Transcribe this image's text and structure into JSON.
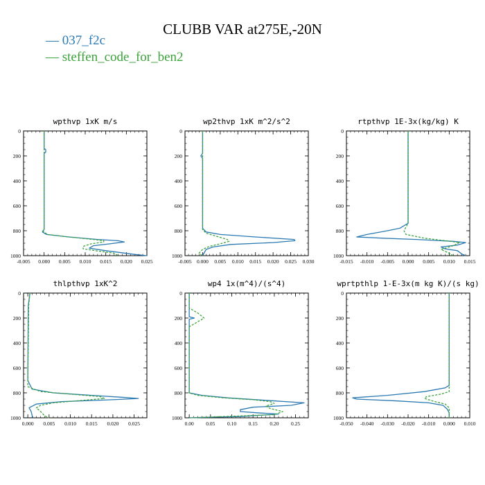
{
  "title": "CLUBB VAR at275E,-20N",
  "legend": [
    {
      "name": "037_f2c",
      "color": "#2a79b2"
    },
    {
      "name": "steffen_code_for_ben2",
      "color": "#3aa33a"
    }
  ],
  "chart_data": [
    {
      "type": "line",
      "title": "wpthvp  1xK m/s",
      "xlim": [
        -0.005,
        0.025
      ],
      "ylim": [
        0,
        1000
      ],
      "y_inverted": true,
      "xticks": [
        -0.005,
        0.0,
        0.005,
        0.01,
        0.015,
        0.02,
        0.025
      ],
      "xtick_labels": [
        "-0.005",
        "0.000",
        "0.005",
        "0.010",
        "0.015",
        "0.020",
        "0.025"
      ],
      "yticks": [
        0,
        200,
        400,
        600,
        800,
        1000
      ],
      "ytick_labels": [
        "0",
        "200",
        "400",
        "600",
        "800",
        "1000"
      ],
      "series": [
        {
          "name": "037_f2c",
          "dash": "solid",
          "points": [
            [
              0.0,
              0
            ],
            [
              0.0,
              140
            ],
            [
              0.0004,
              150
            ],
            [
              0.0004,
              170
            ],
            [
              0.0,
              180
            ],
            [
              0.0,
              790
            ],
            [
              -0.0004,
              810
            ],
            [
              0.0006,
              830
            ],
            [
              0.006,
              850
            ],
            [
              0.013,
              870
            ],
            [
              0.018,
              880
            ],
            [
              0.0195,
              890
            ],
            [
              0.016,
              905
            ],
            [
              0.012,
              920
            ],
            [
              0.011,
              940
            ],
            [
              0.015,
              960
            ],
            [
              0.022,
              990
            ],
            [
              0.025,
              1000
            ]
          ]
        },
        {
          "name": "steffen_code_for_ben2",
          "dash": "dashed",
          "points": [
            [
              0.0,
              0
            ],
            [
              0.0,
              790
            ],
            [
              -0.0004,
              800
            ],
            [
              0.0008,
              830
            ],
            [
              0.006,
              850
            ],
            [
              0.012,
              870
            ],
            [
              0.0145,
              880
            ],
            [
              0.0145,
              890
            ],
            [
              0.0115,
              905
            ],
            [
              0.0095,
              925
            ],
            [
              0.0095,
              945
            ],
            [
              0.0125,
              960
            ],
            [
              0.017,
              980
            ],
            [
              0.018,
              1000
            ]
          ]
        }
      ]
    },
    {
      "type": "line",
      "title": "wp2thvp  1xK m^2/s^2",
      "xlim": [
        -0.005,
        0.03
      ],
      "ylim": [
        0,
        1000
      ],
      "y_inverted": true,
      "xticks": [
        -0.005,
        0.0,
        0.005,
        0.01,
        0.015,
        0.02,
        0.025,
        0.03
      ],
      "xtick_labels": [
        "-0.005",
        "0.000",
        "0.005",
        "0.010",
        "0.015",
        "0.020",
        "0.025",
        "0.030"
      ],
      "yticks": [
        0,
        200,
        400,
        600,
        800,
        1000
      ],
      "ytick_labels": [
        "0",
        "200",
        "400",
        "600",
        "800",
        "1000"
      ],
      "series": [
        {
          "name": "037_f2c",
          "dash": "solid",
          "points": [
            [
              0.0,
              0
            ],
            [
              0.0,
              180
            ],
            [
              -0.0005,
              200
            ],
            [
              0.0,
              220
            ],
            [
              0.0,
              780
            ],
            [
              0.001,
              810
            ],
            [
              0.005,
              830
            ],
            [
              0.015,
              850
            ],
            [
              0.026,
              870
            ],
            [
              0.0262,
              880
            ],
            [
              0.02,
              895
            ],
            [
              0.008,
              910
            ],
            [
              0.003,
              930
            ],
            [
              0.001,
              950
            ],
            [
              0.0,
              1000
            ]
          ]
        },
        {
          "name": "steffen_code_for_ben2",
          "dash": "dashed",
          "points": [
            [
              0.0,
              0
            ],
            [
              0.0,
              790
            ],
            [
              0.001,
              820
            ],
            [
              0.004,
              845
            ],
            [
              0.007,
              870
            ],
            [
              0.0075,
              885
            ],
            [
              0.005,
              905
            ],
            [
              0.002,
              925
            ],
            [
              0.0,
              950
            ],
            [
              -0.001,
              980
            ],
            [
              0.0,
              1000
            ]
          ]
        }
      ]
    },
    {
      "type": "line",
      "title": "rtpthvp  1E-3x(kg/kg) K",
      "xlim": [
        -0.015,
        0.015
      ],
      "ylim": [
        0,
        1000
      ],
      "y_inverted": true,
      "xticks": [
        -0.015,
        -0.01,
        -0.005,
        0.0,
        0.005,
        0.01,
        0.015
      ],
      "xtick_labels": [
        "-0.015",
        "-0.010",
        "-0.005",
        "0.000",
        "0.005",
        "0.010",
        "0.015"
      ],
      "yticks": [
        0,
        200,
        400,
        600,
        800,
        1000
      ],
      "ytick_labels": [
        "0",
        "200",
        "400",
        "600",
        "800",
        "1000"
      ],
      "series": [
        {
          "name": "037_f2c",
          "dash": "solid",
          "points": [
            [
              0.0,
              0
            ],
            [
              0.0,
              740
            ],
            [
              -0.002,
              780
            ],
            [
              -0.005,
              800
            ],
            [
              -0.01,
              830
            ],
            [
              -0.0125,
              850
            ],
            [
              -0.006,
              860
            ],
            [
              0.002,
              870
            ],
            [
              0.011,
              885
            ],
            [
              0.014,
              895
            ],
            [
              0.012,
              915
            ],
            [
              0.008,
              930
            ],
            [
              0.009,
              945
            ],
            [
              0.012,
              960
            ],
            [
              0.013,
              985
            ],
            [
              0.014,
              1000
            ]
          ]
        },
        {
          "name": "steffen_code_for_ben2",
          "dash": "dashed",
          "points": [
            [
              0.0,
              0
            ],
            [
              0.0,
              740
            ],
            [
              -0.0005,
              770
            ],
            [
              -0.001,
              800
            ],
            [
              -0.0005,
              830
            ],
            [
              0.004,
              860
            ],
            [
              0.009,
              880
            ],
            [
              0.0125,
              895
            ],
            [
              0.011,
              920
            ],
            [
              0.008,
              950
            ],
            [
              0.01,
              980
            ],
            [
              0.011,
              1000
            ]
          ]
        }
      ]
    },
    {
      "type": "line",
      "title": "thlpthvp  1xK^2",
      "xlim": [
        -0.001,
        0.028
      ],
      "ylim": [
        0,
        1000
      ],
      "y_inverted": true,
      "xticks": [
        0.0,
        0.005,
        0.01,
        0.015,
        0.02,
        0.025
      ],
      "xtick_labels": [
        "0.000",
        "0.005",
        "0.010",
        "0.015",
        "0.020",
        "0.025"
      ],
      "yticks": [
        0,
        200,
        400,
        600,
        800,
        1000
      ],
      "ytick_labels": [
        "0",
        "200",
        "400",
        "600",
        "800",
        "1000"
      ],
      "series": [
        {
          "name": "037_f2c",
          "dash": "solid",
          "points": [
            [
              0.0005,
              0
            ],
            [
              0.0001,
              100
            ],
            [
              0.0,
              700
            ],
            [
              0.001,
              770
            ],
            [
              0.006,
              800
            ],
            [
              0.015,
              820
            ],
            [
              0.022,
              835
            ],
            [
              0.026,
              845
            ],
            [
              0.02,
              855
            ],
            [
              0.008,
              870
            ],
            [
              0.002,
              890
            ],
            [
              0.0003,
              920
            ],
            [
              0.0008,
              950
            ],
            [
              0.001,
              980
            ],
            [
              0.0012,
              1000
            ]
          ]
        },
        {
          "name": "steffen_code_for_ben2",
          "dash": "dashed",
          "points": [
            [
              0.0005,
              0
            ],
            [
              0.0002,
              100
            ],
            [
              0.0,
              750
            ],
            [
              0.003,
              790
            ],
            [
              0.01,
              810
            ],
            [
              0.017,
              830
            ],
            [
              0.018,
              845
            ],
            [
              0.013,
              860
            ],
            [
              0.006,
              880
            ],
            [
              0.003,
              900
            ],
            [
              0.002,
              920
            ],
            [
              0.003,
              950
            ],
            [
              0.004,
              985
            ],
            [
              0.005,
              1000
            ]
          ]
        }
      ]
    },
    {
      "type": "line",
      "title": "wp4  1x(m^4)/(s^4)",
      "xlim": [
        -0.01,
        0.28
      ],
      "ylim": [
        0,
        1000
      ],
      "y_inverted": true,
      "xticks": [
        0.0,
        0.05,
        0.1,
        0.15,
        0.2,
        0.25
      ],
      "xtick_labels": [
        "0.00",
        "0.05",
        "0.10",
        "0.15",
        "0.20",
        "0.25"
      ],
      "yticks": [
        0,
        200,
        400,
        600,
        800,
        1000
      ],
      "ytick_labels": [
        "0",
        "200",
        "400",
        "600",
        "800",
        "1000"
      ],
      "series": [
        {
          "name": "037_f2c",
          "dash": "solid",
          "points": [
            [
              0.0,
              0
            ],
            [
              0.0,
              190
            ],
            [
              0.012,
              200
            ],
            [
              0.0,
              210
            ],
            [
              0.0,
              800
            ],
            [
              0.03,
              820
            ],
            [
              0.09,
              840
            ],
            [
              0.18,
              860
            ],
            [
              0.27,
              880
            ],
            [
              0.24,
              900
            ],
            [
              0.15,
              915
            ],
            [
              0.12,
              935
            ],
            [
              0.12,
              950
            ],
            [
              0.16,
              960
            ],
            [
              0.21,
              970
            ],
            [
              0.12,
              990
            ],
            [
              0.05,
              995
            ],
            [
              0.0,
              1000
            ]
          ]
        },
        {
          "name": "steffen_code_for_ben2",
          "dash": "dashed",
          "points": [
            [
              0.0,
              0
            ],
            [
              0.0,
              120
            ],
            [
              0.02,
              160
            ],
            [
              0.035,
              200
            ],
            [
              0.02,
              230
            ],
            [
              0.0,
              270
            ],
            [
              0.0,
              800
            ],
            [
              0.02,
              820
            ],
            [
              0.08,
              840
            ],
            [
              0.15,
              855
            ],
            [
              0.19,
              870
            ],
            [
              0.2,
              885
            ],
            [
              0.18,
              905
            ],
            [
              0.19,
              925
            ],
            [
              0.22,
              950
            ],
            [
              0.2,
              975
            ],
            [
              0.08,
              990
            ],
            [
              0.0,
              1000
            ]
          ]
        }
      ]
    },
    {
      "type": "line",
      "title": "wprtpthlp  1-E-3x(m kg K)/(s kg)",
      "xlim": [
        -0.05,
        0.01
      ],
      "ylim": [
        0,
        1000
      ],
      "y_inverted": true,
      "xticks": [
        -0.05,
        -0.04,
        -0.03,
        -0.02,
        -0.01,
        0.0,
        0.01
      ],
      "xtick_labels": [
        "-0.050",
        "-0.040",
        "-0.030",
        "-0.020",
        "-0.010",
        "0.000",
        "0.010"
      ],
      "yticks": [
        0,
        200,
        400,
        600,
        800,
        1000
      ],
      "ytick_labels": [
        "0",
        "200",
        "400",
        "600",
        "800",
        "1000"
      ],
      "series": [
        {
          "name": "037_f2c",
          "dash": "solid",
          "points": [
            [
              0.0,
              0
            ],
            [
              0.0,
              740
            ],
            [
              -0.002,
              760
            ],
            [
              -0.012,
              790
            ],
            [
              -0.03,
              820
            ],
            [
              -0.047,
              840
            ],
            [
              -0.045,
              850
            ],
            [
              -0.025,
              865
            ],
            [
              -0.01,
              880
            ],
            [
              -0.003,
              900
            ],
            [
              -0.001,
              930
            ],
            [
              0.0,
              960
            ],
            [
              0.0,
              1000
            ]
          ]
        },
        {
          "name": "steffen_code_for_ben2",
          "dash": "dashed",
          "points": [
            [
              0.0,
              0
            ],
            [
              0.0,
              790
            ],
            [
              -0.004,
              810
            ],
            [
              -0.011,
              830
            ],
            [
              -0.012,
              845
            ],
            [
              -0.007,
              870
            ],
            [
              -0.002,
              890
            ],
            [
              0.0,
              920
            ],
            [
              0.0,
              1000
            ]
          ]
        }
      ]
    }
  ]
}
